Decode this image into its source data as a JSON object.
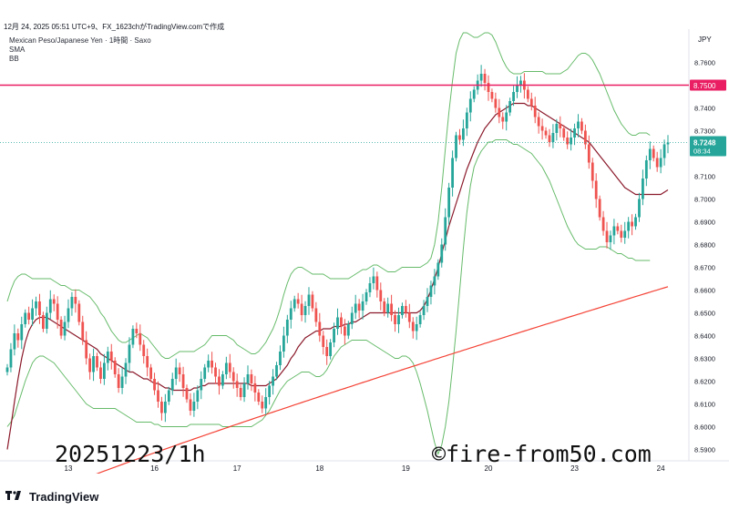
{
  "header": {
    "topline": "12月 24, 2025 05:51 UTC+9、FX_1623chがTradingView.comで作成",
    "symbol": "Mexican Peso/Japanese Yen · 1時間 · Saxo",
    "indicator1": "SMA",
    "indicator2": "BB"
  },
  "watermark": {
    "left": "20251223/1h",
    "right": "©fire-from50.com"
  },
  "footer": {
    "logo_icon": "tradingview-logo-icon",
    "brand": "TradingView"
  },
  "colors": {
    "up": "#26a69a",
    "down": "#ef5350",
    "sma_long": "#f44336",
    "mid": "#8b1a2b",
    "bb": "#66bb6a",
    "hline": "#e91e63",
    "price_tag": "#26a69a"
  },
  "chart_data": {
    "type": "candlestick",
    "currency": "JPY",
    "ylim": [
      8.585,
      8.773
    ],
    "y_ticks": [
      "8.7600",
      "8.7500",
      "8.7400",
      "8.7300",
      "8.7200",
      "8.7100",
      "8.7000",
      "8.6900",
      "8.6800",
      "8.6700",
      "8.6600",
      "8.6500",
      "8.6400",
      "8.6300",
      "8.6200",
      "8.6100",
      "8.6000",
      "8.5900"
    ],
    "x_labels": [
      {
        "label": "13",
        "bar": 17
      },
      {
        "label": "16",
        "bar": 41
      },
      {
        "label": "17",
        "bar": 64
      },
      {
        "label": "18",
        "bar": 87
      },
      {
        "label": "19",
        "bar": 111
      },
      {
        "label": "20",
        "bar": 134
      },
      {
        "label": "23",
        "bar": 158
      },
      {
        "label": "24",
        "bar": 182
      }
    ],
    "horizontal_line": {
      "value": 8.75,
      "label": "8.7500"
    },
    "last_price": {
      "value": 8.7248,
      "label": "8.7248",
      "countdown": "08:34"
    },
    "series_close": [
      8.626,
      8.634,
      8.641,
      8.638,
      8.645,
      8.65,
      8.647,
      8.652,
      8.655,
      8.649,
      8.643,
      8.65,
      8.656,
      8.654,
      8.647,
      8.64,
      8.646,
      8.652,
      8.657,
      8.654,
      8.646,
      8.638,
      8.63,
      8.624,
      8.631,
      8.626,
      8.621,
      8.628,
      8.633,
      8.629,
      8.623,
      8.617,
      8.622,
      8.628,
      8.636,
      8.643,
      8.641,
      8.636,
      8.631,
      8.626,
      8.621,
      8.616,
      8.611,
      8.606,
      8.611,
      8.616,
      8.621,
      8.626,
      8.623,
      8.617,
      8.612,
      8.607,
      8.611,
      8.616,
      8.621,
      8.626,
      8.629,
      8.626,
      8.622,
      8.618,
      8.623,
      8.628,
      8.624,
      8.62,
      8.617,
      8.613,
      8.619,
      8.623,
      8.619,
      8.615,
      8.611,
      8.608,
      8.613,
      8.618,
      8.622,
      8.627,
      8.633,
      8.64,
      8.647,
      8.652,
      8.656,
      8.654,
      8.649,
      8.653,
      8.658,
      8.652,
      8.646,
      8.64,
      8.635,
      8.631,
      8.637,
      8.643,
      8.648,
      8.644,
      8.64,
      8.645,
      8.65,
      8.654,
      8.651,
      8.655,
      8.659,
      8.663,
      8.666,
      8.66,
      8.655,
      8.65,
      8.654,
      8.649,
      8.645,
      8.649,
      8.653,
      8.65,
      8.646,
      8.642,
      8.645,
      8.649,
      8.653,
      8.657,
      8.662,
      8.666,
      8.672,
      8.68,
      8.692,
      8.705,
      8.718,
      8.728,
      8.726,
      8.731,
      8.738,
      8.744,
      8.748,
      8.752,
      8.755,
      8.751,
      8.747,
      8.744,
      8.74,
      8.736,
      8.734,
      8.738,
      8.743,
      8.747,
      8.75,
      8.752,
      8.748,
      8.744,
      8.741,
      8.736,
      8.732,
      8.73,
      8.728,
      8.725,
      8.729,
      8.733,
      8.731,
      8.727,
      8.724,
      8.727,
      8.731,
      8.734,
      8.73,
      8.724,
      8.716,
      8.708,
      8.7,
      8.692,
      8.686,
      8.681,
      8.684,
      8.688,
      8.686,
      8.683,
      8.686,
      8.69,
      8.688,
      8.692,
      8.7,
      8.709,
      8.717,
      8.722,
      8.718,
      8.714,
      8.718,
      8.724,
      8.7248
    ],
    "series_sma_mid": [
      8.59,
      8.6,
      8.611,
      8.621,
      8.63,
      8.637,
      8.642,
      8.645,
      8.647,
      8.648,
      8.648,
      8.648,
      8.647,
      8.646,
      8.645,
      8.644,
      8.643,
      8.642,
      8.641,
      8.64,
      8.639,
      8.638,
      8.637,
      8.636,
      8.635,
      8.634,
      8.632,
      8.631,
      8.63,
      8.629,
      8.628,
      8.627,
      8.626,
      8.625,
      8.624,
      8.624,
      8.623,
      8.622,
      8.621,
      8.621,
      8.62,
      8.619,
      8.619,
      8.618,
      8.617,
      8.617,
      8.616,
      8.616,
      8.616,
      8.616,
      8.616,
      8.616,
      8.617,
      8.617,
      8.618,
      8.618,
      8.619,
      8.619,
      8.619,
      8.619,
      8.619,
      8.619,
      8.619,
      8.619,
      8.619,
      8.619,
      8.619,
      8.619,
      8.618,
      8.618,
      8.618,
      8.618,
      8.618,
      8.619,
      8.62,
      8.621,
      8.623,
      8.625,
      8.627,
      8.63,
      8.632,
      8.635,
      8.637,
      8.639,
      8.64,
      8.641,
      8.642,
      8.642,
      8.643,
      8.643,
      8.643,
      8.644,
      8.644,
      8.644,
      8.645,
      8.645,
      8.646,
      8.646,
      8.647,
      8.648,
      8.649,
      8.65,
      8.65,
      8.65,
      8.65,
      8.65,
      8.65,
      8.65,
      8.65,
      8.65,
      8.65,
      8.65,
      8.65,
      8.65,
      8.65,
      8.651,
      8.653,
      8.656,
      8.66,
      8.665,
      8.67,
      8.676,
      8.682,
      8.688,
      8.693,
      8.698,
      8.703,
      8.708,
      8.713,
      8.717,
      8.721,
      8.725,
      8.728,
      8.731,
      8.733,
      8.735,
      8.737,
      8.738,
      8.739,
      8.74,
      8.741,
      8.742,
      8.742,
      8.742,
      8.742,
      8.741,
      8.741,
      8.74,
      8.739,
      8.738,
      8.737,
      8.736,
      8.735,
      8.734,
      8.733,
      8.732,
      8.731,
      8.73,
      8.729,
      8.728,
      8.727,
      8.726,
      8.725,
      8.723,
      8.721,
      8.719,
      8.717,
      8.715,
      8.713,
      8.711,
      8.709,
      8.707,
      8.705,
      8.704,
      8.703,
      8.702,
      8.702,
      8.702,
      8.702,
      8.702,
      8.702,
      8.702,
      8.702,
      8.703,
      8.704
    ],
    "series_sma_long_range": [
      8.563,
      8.6615
    ],
    "bb_upper": [
      8.655,
      8.66,
      8.664,
      8.666,
      8.667,
      8.667,
      8.666,
      8.665,
      8.665,
      8.665,
      8.665,
      8.665,
      8.665,
      8.664,
      8.663,
      8.662,
      8.662,
      8.661,
      8.66,
      8.66,
      8.66,
      8.659,
      8.658,
      8.657,
      8.655,
      8.653,
      8.65,
      8.648,
      8.645,
      8.642,
      8.64,
      8.638,
      8.637,
      8.637,
      8.638,
      8.639,
      8.64,
      8.641,
      8.64,
      8.639,
      8.637,
      8.635,
      8.633,
      8.631,
      8.63,
      8.63,
      8.631,
      8.632,
      8.633,
      8.633,
      8.633,
      8.633,
      8.633,
      8.634,
      8.635,
      8.636,
      8.638,
      8.64,
      8.64,
      8.64,
      8.64,
      8.64,
      8.639,
      8.638,
      8.636,
      8.635,
      8.634,
      8.633,
      8.632,
      8.632,
      8.633,
      8.635,
      8.637,
      8.64,
      8.643,
      8.647,
      8.652,
      8.658,
      8.663,
      8.667,
      8.669,
      8.67,
      8.67,
      8.669,
      8.668,
      8.667,
      8.667,
      8.667,
      8.667,
      8.666,
      8.665,
      8.665,
      8.665,
      8.665,
      8.665,
      8.665,
      8.666,
      8.667,
      8.668,
      8.669,
      8.669,
      8.67,
      8.671,
      8.671,
      8.67,
      8.669,
      8.668,
      8.668,
      8.668,
      8.669,
      8.67,
      8.67,
      8.67,
      8.67,
      8.67,
      8.67,
      8.671,
      8.672,
      8.674,
      8.68,
      8.69,
      8.705,
      8.722,
      8.738,
      8.752,
      8.764,
      8.77,
      8.773,
      8.773,
      8.772,
      8.771,
      8.771,
      8.772,
      8.773,
      8.773,
      8.772,
      8.769,
      8.765,
      8.761,
      8.758,
      8.756,
      8.755,
      8.755,
      8.755,
      8.756,
      8.756,
      8.756,
      8.756,
      8.756,
      8.756,
      8.755,
      8.755,
      8.755,
      8.755,
      8.755,
      8.756,
      8.757,
      8.759,
      8.761,
      8.763,
      8.764,
      8.764,
      8.763,
      8.761,
      8.758,
      8.755,
      8.751,
      8.747,
      8.743,
      8.739,
      8.736,
      8.733,
      8.731,
      8.729,
      8.728,
      8.728,
      8.729,
      8.729,
      8.729,
      8.728
    ],
    "bb_lower": [
      8.6,
      8.602,
      8.605,
      8.61,
      8.615,
      8.62,
      8.624,
      8.628,
      8.63,
      8.631,
      8.631,
      8.63,
      8.629,
      8.628,
      8.626,
      8.624,
      8.622,
      8.62,
      8.618,
      8.616,
      8.614,
      8.612,
      8.61,
      8.609,
      8.608,
      8.608,
      8.608,
      8.608,
      8.608,
      8.608,
      8.608,
      8.607,
      8.606,
      8.605,
      8.604,
      8.603,
      8.602,
      8.602,
      8.602,
      8.602,
      8.602,
      8.601,
      8.601,
      8.6,
      8.6,
      8.6,
      8.6,
      8.6,
      8.6,
      8.6,
      8.6,
      8.601,
      8.601,
      8.601,
      8.601,
      8.601,
      8.601,
      8.601,
      8.601,
      8.601,
      8.6,
      8.6,
      8.6,
      8.6,
      8.6,
      8.6,
      8.6,
      8.6,
      8.6,
      8.601,
      8.602,
      8.603,
      8.605,
      8.607,
      8.61,
      8.613,
      8.616,
      8.618,
      8.62,
      8.621,
      8.622,
      8.623,
      8.624,
      8.624,
      8.624,
      8.623,
      8.622,
      8.622,
      8.623,
      8.625,
      8.628,
      8.631,
      8.633,
      8.635,
      8.636,
      8.637,
      8.638,
      8.638,
      8.638,
      8.638,
      8.638,
      8.637,
      8.636,
      8.635,
      8.634,
      8.633,
      8.632,
      8.631,
      8.63,
      8.63,
      8.631,
      8.631,
      8.63,
      8.628,
      8.624,
      8.619,
      8.613,
      8.607,
      8.6,
      8.593,
      8.588,
      8.592,
      8.6,
      8.611,
      8.626,
      8.642,
      8.66,
      8.678,
      8.694,
      8.706,
      8.714,
      8.718,
      8.721,
      8.723,
      8.725,
      8.725,
      8.726,
      8.726,
      8.726,
      8.726,
      8.725,
      8.724,
      8.724,
      8.723,
      8.722,
      8.721,
      8.72,
      8.718,
      8.716,
      8.714,
      8.711,
      8.708,
      8.704,
      8.7,
      8.696,
      8.692,
      8.688,
      8.685,
      8.682,
      8.68,
      8.679,
      8.678,
      8.678,
      8.678,
      8.678,
      8.679,
      8.679,
      8.679,
      8.678,
      8.677,
      8.676,
      8.676,
      8.675,
      8.674,
      8.674,
      8.673,
      8.673,
      8.673,
      8.673,
      8.673
    ]
  }
}
